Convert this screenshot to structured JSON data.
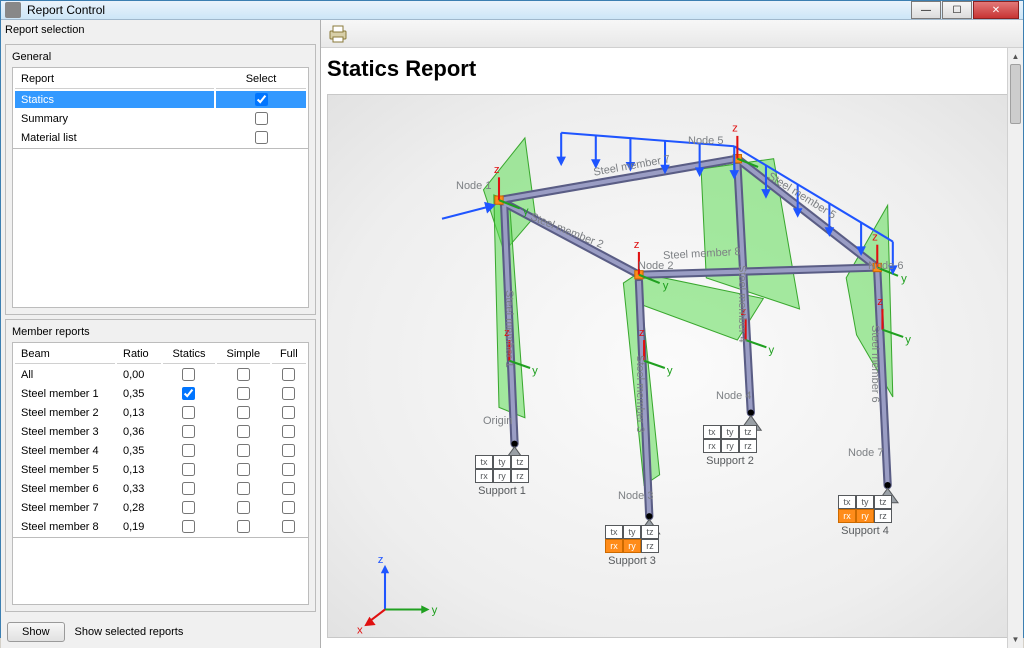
{
  "window": {
    "title": "Report Control"
  },
  "left": {
    "selection_title": "Report selection",
    "general_title": "General",
    "general_headers": {
      "report": "Report",
      "select": "Select"
    },
    "general_rows": [
      {
        "name": "Statics",
        "checked": true,
        "selected": true
      },
      {
        "name": "Summary",
        "checked": false,
        "selected": false
      },
      {
        "name": "Material list",
        "checked": false,
        "selected": false
      }
    ],
    "member_title": "Member reports",
    "member_headers": {
      "beam": "Beam",
      "ratio": "Ratio",
      "statics": "Statics",
      "simple": "Simple",
      "full": "Full"
    },
    "member_rows": [
      {
        "beam": "All",
        "ratio": "0,00",
        "statics": false,
        "simple": false,
        "full": false
      },
      {
        "beam": "Steel member 1",
        "ratio": "0,35",
        "statics": true,
        "simple": false,
        "full": false
      },
      {
        "beam": "Steel member 2",
        "ratio": "0,13",
        "statics": false,
        "simple": false,
        "full": false
      },
      {
        "beam": "Steel member 3",
        "ratio": "0,36",
        "statics": false,
        "simple": false,
        "full": false
      },
      {
        "beam": "Steel member 4",
        "ratio": "0,35",
        "statics": false,
        "simple": false,
        "full": false
      },
      {
        "beam": "Steel member 5",
        "ratio": "0,13",
        "statics": false,
        "simple": false,
        "full": false
      },
      {
        "beam": "Steel member 6",
        "ratio": "0,33",
        "statics": false,
        "simple": false,
        "full": false
      },
      {
        "beam": "Steel member 7",
        "ratio": "0,28",
        "statics": false,
        "simple": false,
        "full": false
      },
      {
        "beam": "Steel member 8",
        "ratio": "0,19",
        "statics": false,
        "simple": false,
        "full": false
      }
    ],
    "show_btn": "Show",
    "show_hint": "Show selected reports"
  },
  "report": {
    "heading": "Statics Report",
    "axes": {
      "x": "x",
      "y": "y",
      "z": "z"
    },
    "colors": {
      "member": "#7b7fa8",
      "member_stroke": "#5a5d85",
      "load_blue": "#1f55ff",
      "diagram_green": "#55d04a",
      "diagram_green_fill": "rgba(95,220,85,0.55)",
      "node_orange": "#ff8c1a",
      "axis_red": "#e01010",
      "axis_green": "#20a020",
      "axis_blue": "#1f55ff",
      "node_text": "#7d8084",
      "support_tri": "#56595c"
    },
    "nodes": {
      "n1": "Node 1",
      "n2": "Node 2",
      "n3": "Node 3",
      "n4": "Node 4",
      "n5": "Node 5",
      "n6": "Node 6",
      "n7": "Node 7",
      "origin": "Origin"
    },
    "members": {
      "m1": "Steel member 1",
      "m2": "Steel member 2",
      "m3": "Steel member 3",
      "m4": "Steel member 4",
      "m5": "Steel member 5",
      "m6": "Steel member 6",
      "m7": "Steel member 7",
      "m8": "Steel member 8"
    },
    "supports": {
      "s1": "Support 1",
      "s2": "Support 2",
      "s3": "Support 3",
      "s4": "Support 4",
      "cells": [
        "tx",
        "ty",
        "tz",
        "rx",
        "ry",
        "rz"
      ]
    }
  }
}
